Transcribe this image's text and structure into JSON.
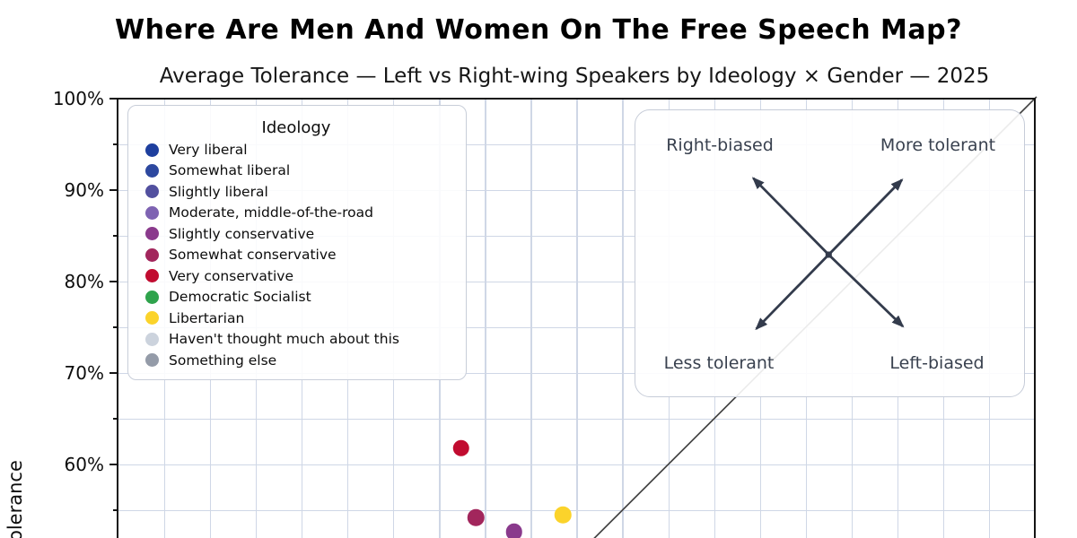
{
  "title": "Where Are Men And Women On The Free Speech Map?",
  "subtitle": "Average Tolerance — Left vs Right-wing Speakers by Ideology × Gender — 2025",
  "y_axis": {
    "label_visible": "olerance",
    "major_ticks": [
      {
        "value": 100,
        "label": "100%"
      },
      {
        "value": 90,
        "label": "90%"
      },
      {
        "value": 80,
        "label": "80%"
      },
      {
        "value": 70,
        "label": "70%"
      },
      {
        "value": 60,
        "label": "60%"
      }
    ],
    "minor_tick_values": [
      95,
      85,
      75,
      65,
      55
    ]
  },
  "x_axis": {
    "range_pct": [
      0,
      100
    ],
    "gridline_step_pct": 5
  },
  "legend": {
    "title": "Ideology",
    "items": [
      {
        "label": "Very liberal",
        "color": "#1e3f9e"
      },
      {
        "label": "Somewhat liberal",
        "color": "#2d489f"
      },
      {
        "label": "Slightly liberal",
        "color": "#52509f"
      },
      {
        "label": "Moderate, middle-of-the-road",
        "color": "#7e63b2"
      },
      {
        "label": "Slightly conservative",
        "color": "#8a3a8c"
      },
      {
        "label": "Somewhat conservative",
        "color": "#a2265c"
      },
      {
        "label": "Very conservative",
        "color": "#c10c30"
      },
      {
        "label": "Democratic Socialist",
        "color": "#2fa34c"
      },
      {
        "label": "Libertarian",
        "color": "#fbd32b"
      },
      {
        "label": "Haven't thought much about this",
        "color": "#ccd3dd"
      },
      {
        "label": "Something else",
        "color": "#949ba8"
      }
    ]
  },
  "quadrant_annotation": {
    "top_left": "Right-biased",
    "top_right": "More tolerant",
    "bottom_left": "Less tolerant",
    "bottom_right": "Left-biased",
    "text_color": "#39414f",
    "arrow_color": "#333b4c"
  },
  "chart_data": {
    "type": "scatter",
    "title": "Where Are Men And Women On The Free Speech Map?",
    "subtitle": "Average Tolerance — Left vs Right-wing Speakers by Ideology × Gender — 2025",
    "x_axis": {
      "range_pct": [
        0,
        100
      ],
      "gridlines_every_pct": 5,
      "tick_format": "percent"
    },
    "y_axis": {
      "visible_range_pct": [
        52,
        100
      ],
      "major_ticks_pct": [
        100,
        90,
        80,
        70,
        60
      ],
      "minor_ticks_pct": [
        95,
        85,
        75,
        65,
        55
      ],
      "tick_format": "percent",
      "partial_label_visible": "olerance"
    },
    "grid": true,
    "legend_position": "upper left",
    "reference_line": {
      "type": "identity",
      "description": "y = x diagonal"
    },
    "visible_points_only": true,
    "points": [
      {
        "ideology": "Very conservative",
        "x_pct": 37.4,
        "y_pct": 61.8
      },
      {
        "ideology": "Somewhat conservative",
        "x_pct": 39.0,
        "y_pct": 54.2
      },
      {
        "ideology": "Slightly conservative",
        "x_pct": 43.2,
        "y_pct": 52.6
      },
      {
        "ideology": "Libertarian",
        "x_pct": 48.5,
        "y_pct": 54.5
      }
    ]
  },
  "colors": {
    "gridline": "#cfd7e6",
    "spine": "#141414",
    "identity_line": "#424242",
    "box_border": "#c8ced9"
  }
}
